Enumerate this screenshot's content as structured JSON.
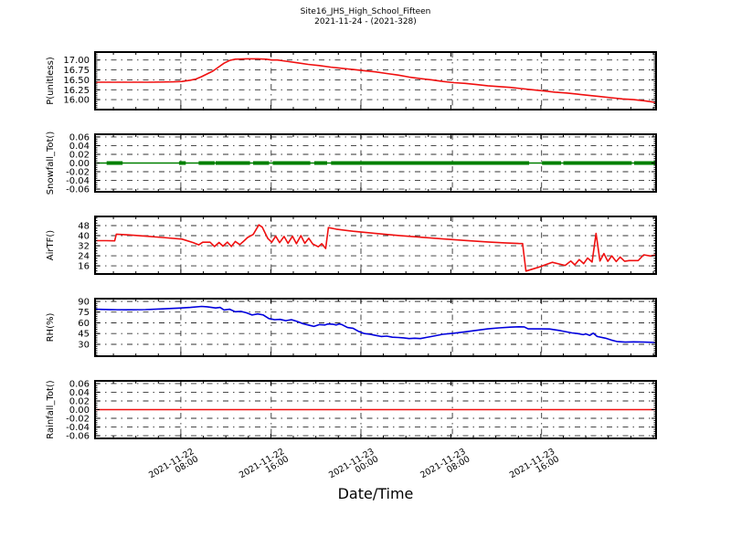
{
  "title": "Site16_JHS_High_School_Fifteen",
  "subtitle": "2021-11-24 - (2021-328)",
  "xlabel": "Date/Time",
  "colors": {
    "pressure_line": "#f01010",
    "snowfall_line": "#008000",
    "airtemp_line": "#f01010",
    "rh_line": "#0000dd",
    "rainfall_line": "#f01010",
    "grid": "#303030",
    "frame": "#000000",
    "text": "#000000"
  },
  "x_axis": {
    "minor_step_frac": 0.0401,
    "tick_labels": [
      {
        "pos": 0.153,
        "date": "2021-11-22",
        "time": "08:00"
      },
      {
        "pos": 0.314,
        "date": "2021-11-22",
        "time": "16:00"
      },
      {
        "pos": 0.474,
        "date": "2021-11-23",
        "time": "00:00"
      },
      {
        "pos": 0.637,
        "date": "2021-11-23",
        "time": "08:00"
      },
      {
        "pos": 0.796,
        "date": "2021-11-23",
        "time": "16:00"
      }
    ]
  },
  "chart_data": [
    {
      "type": "line",
      "name": "pressure",
      "ylabel": "P(unitless)",
      "ylim": [
        15.75,
        17.2
      ],
      "ytick_values": [
        16.0,
        16.25,
        16.5,
        16.75,
        17.0
      ],
      "ytick_labels": [
        "16.00",
        "16.25",
        "16.50",
        "16.75",
        "17.00"
      ],
      "minor_div": 5,
      "color_key": "pressure_line",
      "points": [
        [
          0,
          16.44
        ],
        [
          0.05,
          16.44
        ],
        [
          0.1,
          16.44
        ],
        [
          0.14,
          16.45
        ],
        [
          0.155,
          16.46
        ],
        [
          0.17,
          16.49
        ],
        [
          0.18,
          16.52
        ],
        [
          0.19,
          16.58
        ],
        [
          0.2,
          16.65
        ],
        [
          0.21,
          16.72
        ],
        [
          0.22,
          16.82
        ],
        [
          0.23,
          16.92
        ],
        [
          0.24,
          16.99
        ],
        [
          0.25,
          17.02
        ],
        [
          0.27,
          17.03
        ],
        [
          0.29,
          17.03
        ],
        [
          0.305,
          17.02
        ],
        [
          0.315,
          17.0
        ],
        [
          0.325,
          17.0
        ],
        [
          0.34,
          16.97
        ],
        [
          0.36,
          16.93
        ],
        [
          0.38,
          16.89
        ],
        [
          0.4,
          16.86
        ],
        [
          0.42,
          16.82
        ],
        [
          0.44,
          16.79
        ],
        [
          0.46,
          16.76
        ],
        [
          0.48,
          16.73
        ],
        [
          0.5,
          16.7
        ],
        [
          0.52,
          16.66
        ],
        [
          0.54,
          16.62
        ],
        [
          0.56,
          16.57
        ],
        [
          0.58,
          16.53
        ],
        [
          0.6,
          16.5
        ],
        [
          0.62,
          16.46
        ],
        [
          0.64,
          16.43
        ],
        [
          0.66,
          16.41
        ],
        [
          0.68,
          16.38
        ],
        [
          0.7,
          16.35
        ],
        [
          0.72,
          16.33
        ],
        [
          0.74,
          16.31
        ],
        [
          0.76,
          16.28
        ],
        [
          0.78,
          16.25
        ],
        [
          0.8,
          16.22
        ],
        [
          0.82,
          16.19
        ],
        [
          0.84,
          16.17
        ],
        [
          0.86,
          16.14
        ],
        [
          0.88,
          16.11
        ],
        [
          0.9,
          16.08
        ],
        [
          0.92,
          16.05
        ],
        [
          0.94,
          16.02
        ],
        [
          0.96,
          16.0
        ],
        [
          0.98,
          15.97
        ],
        [
          1.0,
          15.93
        ]
      ]
    },
    {
      "type": "line",
      "name": "snowfall",
      "ylabel": "Snowfall_Tot()",
      "ylim": [
        -0.066,
        0.066
      ],
      "ytick_values": [
        -0.06,
        -0.04,
        -0.02,
        0.0,
        0.02,
        0.04,
        0.06
      ],
      "ytick_labels": [
        "-0.06",
        "-0.04",
        "-0.02",
        "0.00",
        "0.02",
        "0.04",
        "0.06"
      ],
      "minor_div": 4,
      "color_key": "snowfall_line",
      "points": [
        [
          0,
          0
        ],
        [
          1,
          0
        ]
      ],
      "marker_value": 0,
      "marker_runs": [
        [
          0.024,
          0.05
        ],
        [
          0.153,
          0.16
        ],
        [
          0.188,
          0.212
        ],
        [
          0.218,
          0.278
        ],
        [
          0.285,
          0.312
        ],
        [
          0.32,
          0.384
        ],
        [
          0.394,
          0.414
        ],
        [
          0.424,
          0.772
        ],
        [
          0.8,
          0.83
        ],
        [
          0.838,
          0.954
        ],
        [
          0.964,
          1.0
        ]
      ]
    },
    {
      "type": "line",
      "name": "air_temperature",
      "ylabel": "AirTF()",
      "ylim": [
        9.5,
        55.3
      ],
      "ytick_values": [
        16,
        24,
        32,
        40,
        48
      ],
      "ytick_labels": [
        "16",
        "24",
        "32",
        "40",
        "48"
      ],
      "minor_div": 4,
      "color_key": "airtemp_line",
      "points": [
        [
          0,
          36
        ],
        [
          0.02,
          36
        ],
        [
          0.035,
          35.9
        ],
        [
          0.038,
          41.2
        ],
        [
          0.06,
          40.6
        ],
        [
          0.09,
          39.6
        ],
        [
          0.12,
          38.6
        ],
        [
          0.155,
          37.3
        ],
        [
          0.175,
          34.5
        ],
        [
          0.185,
          32.7
        ],
        [
          0.192,
          34.8
        ],
        [
          0.205,
          34.8
        ],
        [
          0.213,
          31.4
        ],
        [
          0.221,
          34.6
        ],
        [
          0.228,
          31.7
        ],
        [
          0.236,
          34.9
        ],
        [
          0.243,
          31.4
        ],
        [
          0.25,
          35.4
        ],
        [
          0.258,
          32.9
        ],
        [
          0.266,
          36.0
        ],
        [
          0.272,
          38.6
        ],
        [
          0.282,
          41.0
        ],
        [
          0.292,
          48.6
        ],
        [
          0.298,
          46.8
        ],
        [
          0.308,
          37.8
        ],
        [
          0.315,
          34.8
        ],
        [
          0.322,
          39.6
        ],
        [
          0.329,
          34.4
        ],
        [
          0.337,
          39.4
        ],
        [
          0.344,
          33.9
        ],
        [
          0.352,
          39.6
        ],
        [
          0.359,
          33.6
        ],
        [
          0.367,
          40.0
        ],
        [
          0.374,
          33.9
        ],
        [
          0.381,
          38.0
        ],
        [
          0.388,
          33.4
        ],
        [
          0.398,
          31.2
        ],
        [
          0.404,
          33.6
        ],
        [
          0.411,
          29.8
        ],
        [
          0.416,
          46.4
        ],
        [
          0.43,
          45.2
        ],
        [
          0.46,
          43.5
        ],
        [
          0.5,
          41.8
        ],
        [
          0.54,
          40.2
        ],
        [
          0.58,
          38.8
        ],
        [
          0.62,
          37.4
        ],
        [
          0.66,
          36.2
        ],
        [
          0.7,
          35.0
        ],
        [
          0.73,
          34.3
        ],
        [
          0.755,
          33.8
        ],
        [
          0.762,
          33.7
        ],
        [
          0.768,
          11.8
        ],
        [
          0.79,
          14.8
        ],
        [
          0.805,
          17.2
        ],
        [
          0.815,
          18.8
        ],
        [
          0.827,
          17.5
        ],
        [
          0.838,
          16.3
        ],
        [
          0.848,
          19.8
        ],
        [
          0.855,
          16.8
        ],
        [
          0.863,
          21.0
        ],
        [
          0.871,
          17.8
        ],
        [
          0.878,
          22.2
        ],
        [
          0.886,
          19.0
        ],
        [
          0.893,
          41.8
        ],
        [
          0.9,
          19.8
        ],
        [
          0.907,
          25.8
        ],
        [
          0.914,
          19.6
        ],
        [
          0.921,
          24.0
        ],
        [
          0.929,
          19.4
        ],
        [
          0.936,
          23.0
        ],
        [
          0.944,
          19.6
        ],
        [
          0.952,
          20.2
        ],
        [
          0.968,
          20.2
        ],
        [
          0.978,
          24.8
        ],
        [
          0.99,
          23.8
        ],
        [
          1.0,
          24.8
        ]
      ]
    },
    {
      "type": "line",
      "name": "relative_humidity",
      "ylabel": "RH(%)",
      "ylim": [
        13.4,
        93.8
      ],
      "ytick_values": [
        30,
        45,
        60,
        75,
        90
      ],
      "ytick_labels": [
        "30",
        "45",
        "60",
        "75",
        "90"
      ],
      "minor_div": 5,
      "color_key": "rh_line",
      "points": [
        [
          0,
          79
        ],
        [
          0.03,
          78.4
        ],
        [
          0.06,
          78.2
        ],
        [
          0.09,
          78.5
        ],
        [
          0.12,
          79.5
        ],
        [
          0.15,
          80.6
        ],
        [
          0.17,
          81.6
        ],
        [
          0.19,
          83
        ],
        [
          0.2,
          82.4
        ],
        [
          0.215,
          80.8
        ],
        [
          0.223,
          81.5
        ],
        [
          0.23,
          78
        ],
        [
          0.24,
          79
        ],
        [
          0.25,
          75.5
        ],
        [
          0.26,
          76
        ],
        [
          0.27,
          74
        ],
        [
          0.28,
          71
        ],
        [
          0.29,
          72.5
        ],
        [
          0.3,
          71
        ],
        [
          0.31,
          66
        ],
        [
          0.32,
          64.5
        ],
        [
          0.33,
          64.8
        ],
        [
          0.34,
          63
        ],
        [
          0.35,
          64.5
        ],
        [
          0.36,
          62
        ],
        [
          0.37,
          59
        ],
        [
          0.38,
          57
        ],
        [
          0.39,
          55
        ],
        [
          0.4,
          57.5
        ],
        [
          0.41,
          57
        ],
        [
          0.415,
          58.5
        ],
        [
          0.425,
          58
        ],
        [
          0.43,
          57
        ],
        [
          0.435,
          58.5
        ],
        [
          0.44,
          57.5
        ],
        [
          0.45,
          53.5
        ],
        [
          0.46,
          52.5
        ],
        [
          0.47,
          48
        ],
        [
          0.48,
          45
        ],
        [
          0.49,
          44
        ],
        [
          0.5,
          42.5
        ],
        [
          0.51,
          41
        ],
        [
          0.52,
          41.5
        ],
        [
          0.53,
          40
        ],
        [
          0.54,
          39.5
        ],
        [
          0.55,
          39
        ],
        [
          0.56,
          38
        ],
        [
          0.57,
          38.5
        ],
        [
          0.58,
          38
        ],
        [
          0.59,
          39.5
        ],
        [
          0.6,
          41
        ],
        [
          0.62,
          44
        ],
        [
          0.64,
          45.5
        ],
        [
          0.66,
          47.5
        ],
        [
          0.68,
          49.5
        ],
        [
          0.7,
          51.5
        ],
        [
          0.72,
          53
        ],
        [
          0.74,
          54
        ],
        [
          0.755,
          54.5
        ],
        [
          0.765,
          54.4
        ],
        [
          0.772,
          51.5
        ],
        [
          0.79,
          51.5
        ],
        [
          0.81,
          51.4
        ],
        [
          0.83,
          49
        ],
        [
          0.85,
          46
        ],
        [
          0.86,
          45
        ],
        [
          0.87,
          43.5
        ],
        [
          0.875,
          44.5
        ],
        [
          0.882,
          42.5
        ],
        [
          0.888,
          45.5
        ],
        [
          0.895,
          41
        ],
        [
          0.91,
          38.5
        ],
        [
          0.92,
          36
        ],
        [
          0.93,
          34
        ],
        [
          0.945,
          33
        ],
        [
          0.96,
          33.5
        ],
        [
          0.98,
          33
        ],
        [
          1.0,
          32.5
        ]
      ]
    },
    {
      "type": "line",
      "name": "rainfall",
      "ylabel": "Rainfall_Tot()",
      "ylim": [
        -0.066,
        0.066
      ],
      "ytick_values": [
        -0.06,
        -0.04,
        -0.02,
        0.0,
        0.02,
        0.04,
        0.06
      ],
      "ytick_labels": [
        "-0.06",
        "-0.04",
        "-0.02",
        "0.00",
        "0.02",
        "0.04",
        "0.06"
      ],
      "minor_div": 4,
      "color_key": "rainfall_line",
      "points": [
        [
          0,
          0
        ],
        [
          1,
          0
        ]
      ]
    }
  ]
}
